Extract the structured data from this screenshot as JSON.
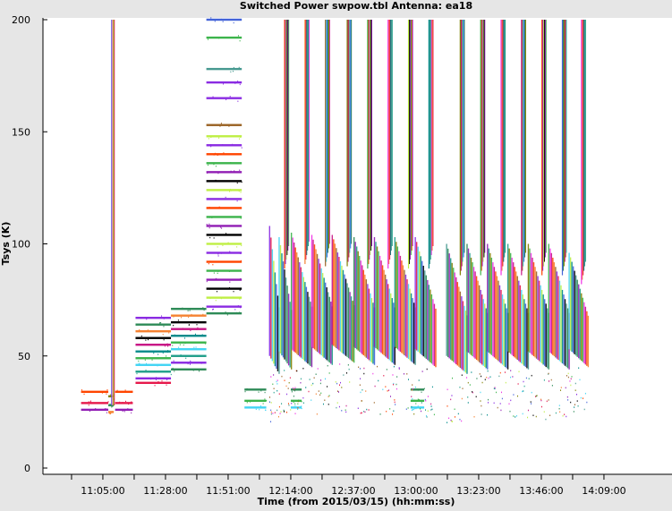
{
  "window": {
    "title": "Switched Power  swpow.tbl   Antenna: ea18"
  },
  "chart_data": {
    "type": "scatter",
    "title": "Switched Power  swpow.tbl   Antenna: ea18",
    "xlabel": "Time (from 2015/03/15) (hh:mm:ss)",
    "ylabel": "Tsys (K)",
    "ylim": [
      0,
      200
    ],
    "x_ticks": [
      "11:05:00",
      "11:28:00",
      "11:51:00",
      "12:14:00",
      "12:37:00",
      "13:00:00",
      "13:23:00",
      "13:46:00",
      "14:09:00"
    ],
    "y_ticks": [
      0,
      50,
      100,
      150,
      200
    ],
    "grid": false,
    "legend": "none",
    "colors": [
      "#e6194b",
      "#3cb44b",
      "#4363d8",
      "#f58231",
      "#911eb4",
      "#42d4f4",
      "#f032e6",
      "#000000",
      "#9a6324",
      "#1f9e89",
      "#bfef45",
      "#c71585",
      "#469990",
      "#8a2be2",
      "#808000",
      "#008b8b",
      "#ff4500",
      "#2e8b57"
    ],
    "blocks": [
      {
        "t0": "10:57:00",
        "t1": "11:07:00",
        "levels": [
          34,
          29,
          26
        ]
      },
      {
        "t0": "11:07:00",
        "t1": "11:09:00",
        "levels": [
          32,
          28,
          25
        ]
      },
      {
        "t0": "11:09:30",
        "t1": "11:16:00",
        "levels": [
          34,
          29,
          26
        ]
      },
      {
        "t0": "11:17:00",
        "t1": "11:30:00",
        "levels": [
          67,
          64,
          61,
          58,
          55,
          52,
          49,
          46,
          43,
          40,
          38
        ]
      },
      {
        "t0": "11:30:00",
        "t1": "11:43:00",
        "levels": [
          71,
          68,
          65,
          62,
          59,
          56,
          53,
          50,
          47,
          44
        ]
      },
      {
        "t0": "11:43:00",
        "t1": "11:56:00",
        "levels": [
          200,
          192,
          178,
          172,
          165,
          153,
          148,
          144,
          140,
          136,
          132,
          128,
          124,
          120,
          116,
          112,
          108,
          104,
          100,
          96,
          92,
          88,
          84,
          80,
          76,
          72,
          69
        ]
      },
      {
        "t0": "11:57:00",
        "t1": "12:05:00",
        "levels": [
          35,
          30,
          27
        ]
      },
      {
        "t0": "12:14:00",
        "t1": "12:18:00",
        "levels": [
          35,
          30,
          27
        ]
      },
      {
        "t0": "12:58:00",
        "t1": "13:03:00",
        "levels": [
          35,
          30,
          27
        ]
      }
    ],
    "scans": [
      {
        "t0": "12:06:00",
        "t1": "12:09:30",
        "ymin": 42,
        "ymax": 108,
        "tail": 0
      },
      {
        "t0": "12:09:30",
        "t1": "12:14:00",
        "ymin": 44,
        "ymax": 103,
        "tail": 200
      },
      {
        "t0": "12:14:00",
        "t1": "12:21:30",
        "ymin": 45,
        "ymax": 105,
        "tail": 200
      },
      {
        "t0": "12:21:30",
        "t1": "12:29:00",
        "ymin": 46,
        "ymax": 104,
        "tail": 200
      },
      {
        "t0": "12:29:00",
        "t1": "12:37:00",
        "ymin": 47,
        "ymax": 104,
        "tail": 200
      },
      {
        "t0": "12:37:00",
        "t1": "12:44:30",
        "ymin": 46,
        "ymax": 103,
        "tail": 200
      },
      {
        "t0": "12:44:30",
        "t1": "12:52:00",
        "ymin": 46,
        "ymax": 103,
        "tail": 200
      },
      {
        "t0": "12:52:00",
        "t1": "12:59:30",
        "ymin": 46,
        "ymax": 103,
        "tail": 200
      },
      {
        "t0": "12:59:30",
        "t1": "13:07:00",
        "ymin": 45,
        "ymax": 103,
        "tail": 200
      },
      {
        "t0": "13:11:00",
        "t1": "13:18:30",
        "ymin": 42,
        "ymax": 100,
        "tail": 200
      },
      {
        "t0": "13:18:30",
        "t1": "13:26:00",
        "ymin": 44,
        "ymax": 100,
        "tail": 200
      },
      {
        "t0": "13:26:00",
        "t1": "13:33:30",
        "ymin": 44,
        "ymax": 100,
        "tail": 200
      },
      {
        "t0": "13:33:30",
        "t1": "13:41:00",
        "ymin": 44,
        "ymax": 100,
        "tail": 200
      },
      {
        "t0": "13:41:00",
        "t1": "13:48:30",
        "ymin": 44,
        "ymax": 100,
        "tail": 200
      },
      {
        "t0": "13:48:30",
        "t1": "13:56:00",
        "ymin": 44,
        "ymax": 100,
        "tail": 200
      },
      {
        "t0": "13:56:00",
        "t1": "14:03:00",
        "ymin": 45,
        "ymax": 96,
        "tail": 200
      }
    ]
  }
}
